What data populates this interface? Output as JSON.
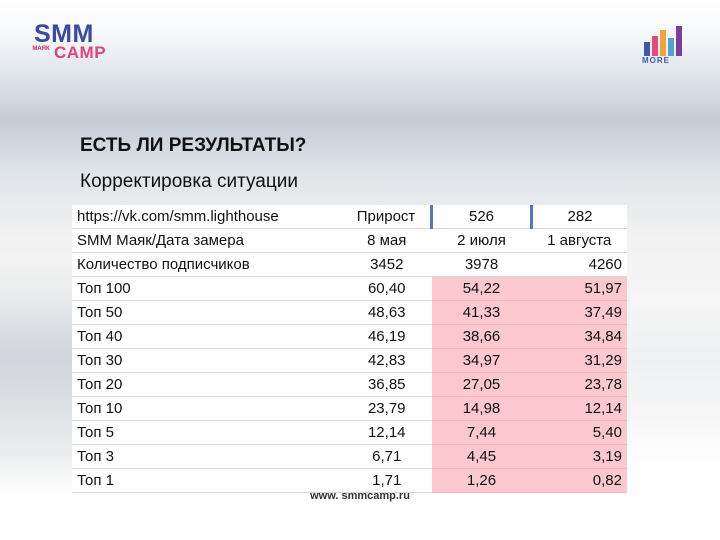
{
  "logo_left": {
    "top": "SMM",
    "bottom": "CAMP",
    "mini": "МАЯК"
  },
  "logo_right": {
    "label": "MORE"
  },
  "title": "ЕСТЬ ЛИ РЕЗУЛЬТАТЫ?",
  "subtitle": "Корректировка ситуации",
  "table": {
    "header": [
      "https://vk.com/smm.lighthouse",
      "Прирост",
      "526",
      "282"
    ],
    "rows": [
      [
        "SMM Маяк/Дата замера",
        "8 мая",
        "2 июля",
        "1 августа"
      ],
      [
        "Количество подписчиков",
        "3452",
        "3978",
        "4260"
      ],
      [
        "Топ 100",
        "60,40",
        "54,22",
        "51,97"
      ],
      [
        "Топ 50",
        "48,63",
        "41,33",
        "37,49"
      ],
      [
        "Топ 40",
        "46,19",
        "38,66",
        "34,84"
      ],
      [
        "Топ 30",
        "42,83",
        "34,97",
        "31,29"
      ],
      [
        "Топ 20",
        "36,85",
        "27,05",
        "23,78"
      ],
      [
        "Топ 10",
        "23,79",
        "14,98",
        "12,14"
      ],
      [
        "Топ 5",
        "12,14",
        "7,44",
        "5,40"
      ],
      [
        "Топ 3",
        "6,71",
        "4,45",
        "3,19"
      ],
      [
        "Топ 1",
        "1,71",
        "1,26",
        "0,82"
      ]
    ]
  },
  "footer": "www. smmcamp.ru",
  "colors": {
    "highlight": "#fbc8cd",
    "logo_blue": "#3a4aa0",
    "logo_pink": "#e0457a",
    "separator": "#5878b8"
  }
}
